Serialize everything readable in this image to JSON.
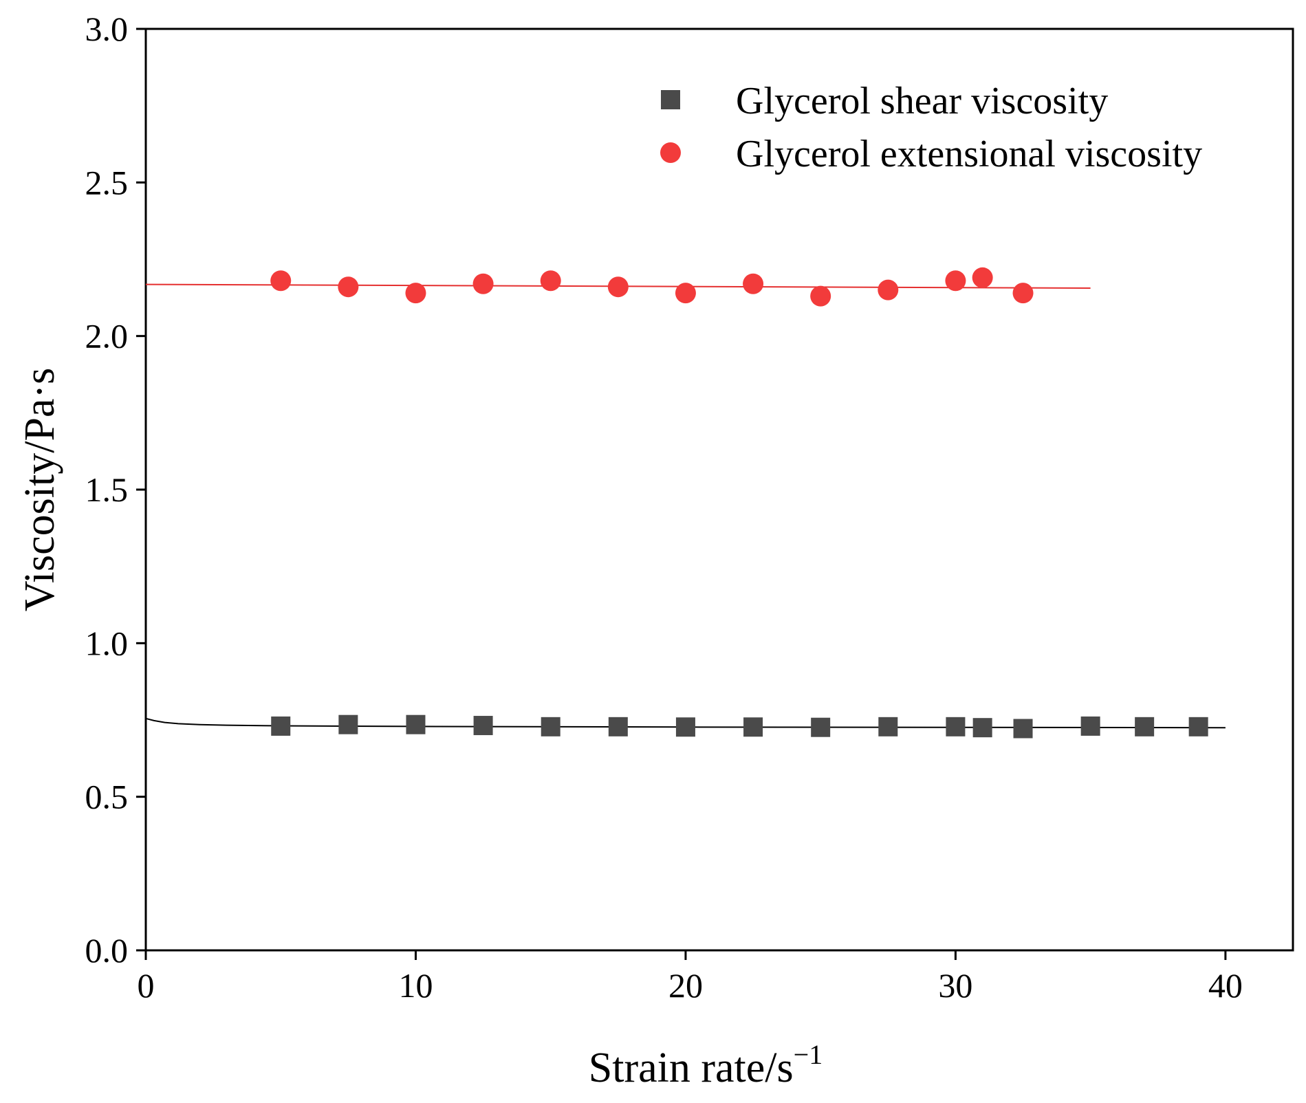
{
  "chart_data": {
    "type": "scatter",
    "title": "",
    "xlabel": "Strain rate/s",
    "xlabel_superscript": "−1",
    "ylabel": "Viscosity/Pa·s",
    "xlim": [
      0,
      42.5
    ],
    "ylim": [
      0,
      3.0
    ],
    "xticks": [
      0,
      10,
      20,
      30,
      40
    ],
    "xtick_labels": [
      "0",
      "10",
      "20",
      "30",
      "40"
    ],
    "yticks": [
      0,
      0.5,
      1.0,
      1.5,
      2.0,
      2.5,
      3.0
    ],
    "ytick_labels": [
      "0.0",
      "0.5",
      "1.0",
      "1.5",
      "2.0",
      "2.5",
      "3.0"
    ],
    "grid": false,
    "legend_position": "top-right",
    "series": [
      {
        "name": "Glycerol shear viscosity",
        "marker": "square",
        "color": "#4a4a4a",
        "x": [
          5,
          7.5,
          10,
          12.5,
          15,
          17.5,
          20,
          22.5,
          25,
          27.5,
          30,
          31,
          32.5,
          35,
          37,
          39
        ],
        "y": [
          0.73,
          0.735,
          0.735,
          0.732,
          0.728,
          0.728,
          0.727,
          0.727,
          0.726,
          0.728,
          0.728,
          0.725,
          0.722,
          0.73,
          0.728,
          0.728
        ],
        "fit": {
          "color": "#000000",
          "x": [
            0,
            0.3,
            0.7,
            1.2,
            2,
            3,
            5,
            10,
            20,
            30,
            40
          ],
          "y": [
            0.755,
            0.748,
            0.742,
            0.738,
            0.735,
            0.733,
            0.731,
            0.729,
            0.727,
            0.726,
            0.725
          ]
        }
      },
      {
        "name": "Glycerol extensional viscosity",
        "marker": "circle",
        "color": "#f23b3b",
        "x": [
          5,
          7.5,
          10,
          12.5,
          15,
          17.5,
          20,
          22.5,
          25,
          27.5,
          30,
          31,
          32.5
        ],
        "y": [
          2.18,
          2.16,
          2.14,
          2.17,
          2.18,
          2.16,
          2.14,
          2.17,
          2.13,
          2.15,
          2.18,
          2.19,
          2.14
        ],
        "fit": {
          "color": "#e53030",
          "x": [
            0,
            35
          ],
          "y": [
            2.168,
            2.156
          ]
        }
      }
    ]
  }
}
